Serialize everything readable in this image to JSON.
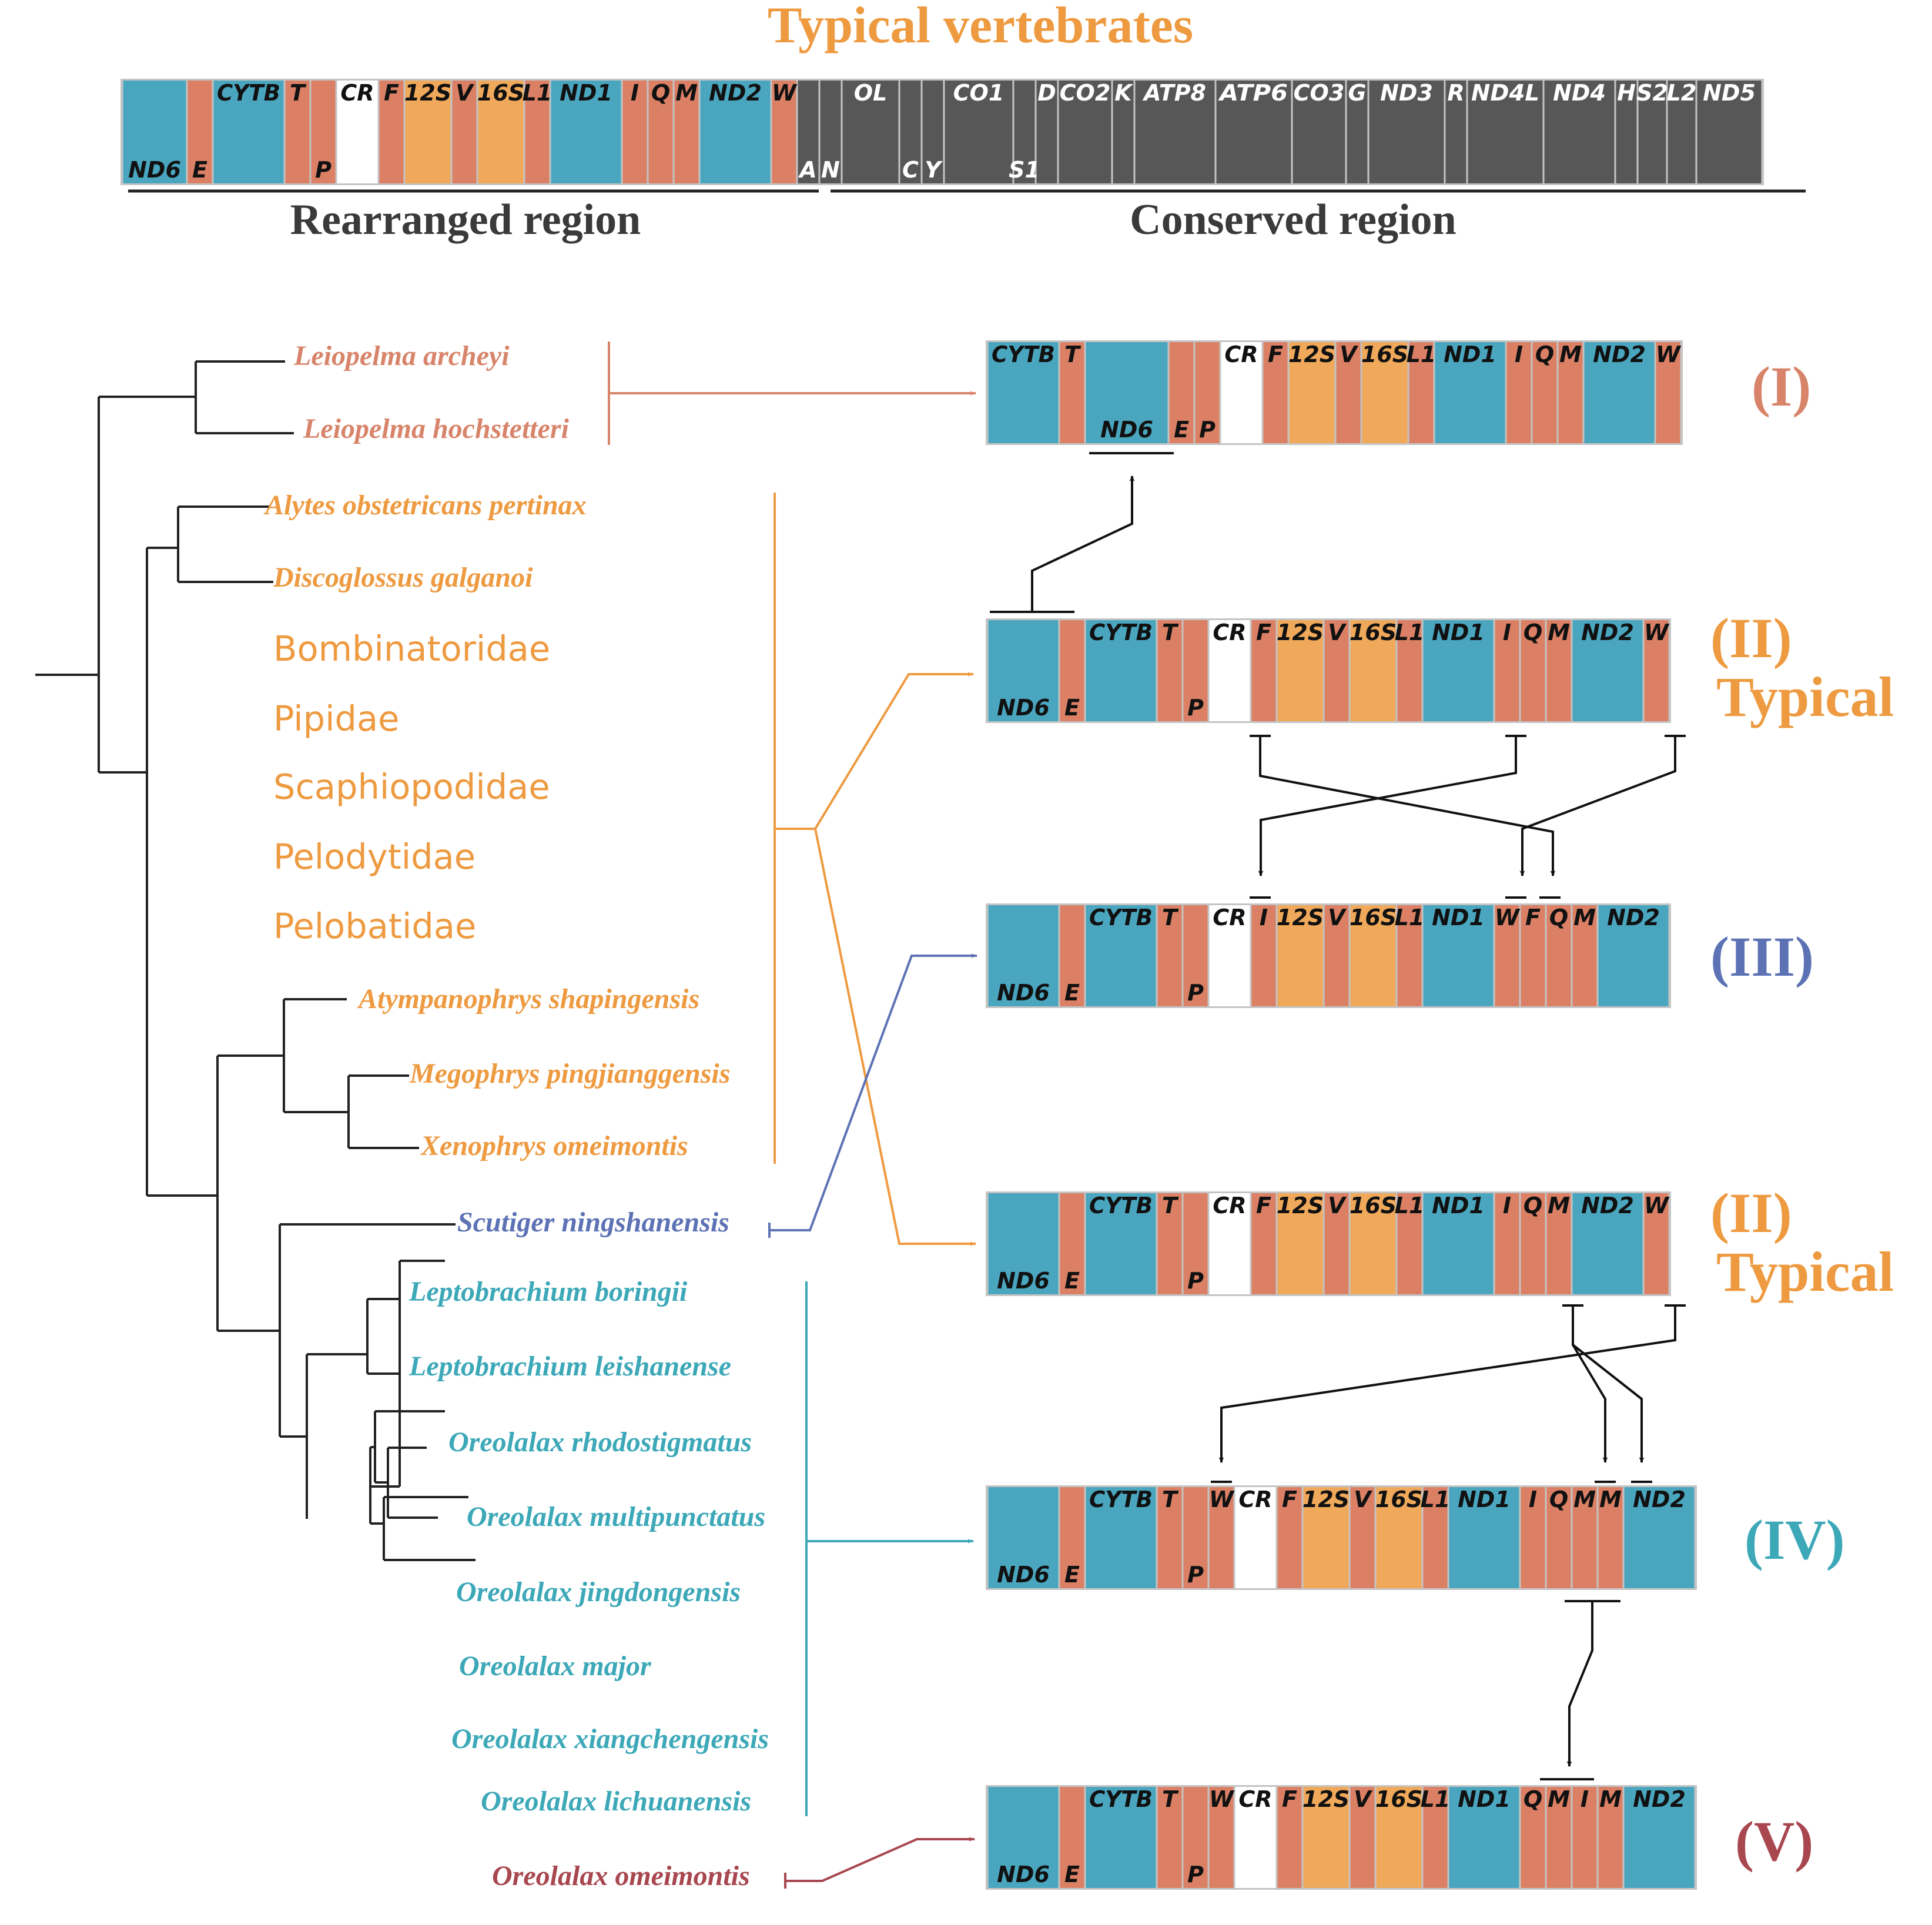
{
  "header": {
    "title": "Typical vertebrates",
    "rearranged_label": "Rearranged region",
    "conserved_label": "Conserved region"
  },
  "colors": {
    "protein_coding": "#4aa6bf",
    "trna": "#db8065",
    "rrna": "#f0a95a",
    "control_region": "#ffffff",
    "conserved_dark": "#575757",
    "border": "#c4c4c4",
    "group_leiopelma": "#d8846a",
    "group_typical": "#ee9a40",
    "group_scutiger": "#5c72b5",
    "group_oreolalax": "#3ca8b8",
    "group_omeimontis": "#a8474f",
    "tree": "#222222"
  },
  "typical_genome": {
    "genes": [
      {
        "label": "ND6",
        "type": "pcg",
        "pos": "bottom"
      },
      {
        "label": "E",
        "type": "trna",
        "pos": "bottom"
      },
      {
        "label": "CYTB",
        "type": "pcg",
        "pos": "top"
      },
      {
        "label": "T",
        "type": "trna",
        "pos": "top"
      },
      {
        "label": "P",
        "type": "trna",
        "pos": "bottom"
      },
      {
        "label": "CR",
        "type": "cr",
        "pos": "top"
      },
      {
        "label": "F",
        "type": "trna",
        "pos": "top"
      },
      {
        "label": "12S",
        "type": "rrna",
        "pos": "top"
      },
      {
        "label": "V",
        "type": "trna",
        "pos": "top"
      },
      {
        "label": "16S",
        "type": "rrna",
        "pos": "top"
      },
      {
        "label": "L1",
        "type": "trna",
        "pos": "top"
      },
      {
        "label": "ND1",
        "type": "pcg",
        "pos": "top"
      },
      {
        "label": "I",
        "type": "trna",
        "pos": "top"
      },
      {
        "label": "Q",
        "type": "trna",
        "pos": "top"
      },
      {
        "label": "M",
        "type": "trna",
        "pos": "top"
      },
      {
        "label": "ND2",
        "type": "pcg",
        "pos": "top"
      },
      {
        "label": "W",
        "type": "trna",
        "pos": "top"
      },
      {
        "label": "A",
        "type": "dark",
        "pos": "bottom"
      },
      {
        "label": "N",
        "type": "dark",
        "pos": "bottom"
      },
      {
        "label": "OL",
        "type": "dark",
        "pos": "top"
      },
      {
        "label": "C",
        "type": "dark",
        "pos": "bottom"
      },
      {
        "label": "Y",
        "type": "dark",
        "pos": "bottom"
      },
      {
        "label": "CO1",
        "type": "dark",
        "pos": "top"
      },
      {
        "label": "S1",
        "type": "dark",
        "pos": "bottom"
      },
      {
        "label": "D",
        "type": "dark",
        "pos": "top"
      },
      {
        "label": "CO2",
        "type": "dark",
        "pos": "top"
      },
      {
        "label": "K",
        "type": "dark",
        "pos": "top"
      },
      {
        "label": "ATP8",
        "type": "dark",
        "pos": "top"
      },
      {
        "label": "ATP6",
        "type": "dark",
        "pos": "top"
      },
      {
        "label": "CO3",
        "type": "dark",
        "pos": "top"
      },
      {
        "label": "G",
        "type": "dark",
        "pos": "top"
      },
      {
        "label": "ND3",
        "type": "dark",
        "pos": "top"
      },
      {
        "label": "R",
        "type": "dark",
        "pos": "top"
      },
      {
        "label": "ND4L",
        "type": "dark",
        "pos": "top"
      },
      {
        "label": "ND4",
        "type": "dark",
        "pos": "top"
      },
      {
        "label": "H",
        "type": "dark",
        "pos": "top"
      },
      {
        "label": "S2",
        "type": "dark",
        "pos": "top"
      },
      {
        "label": "L2",
        "type": "dark",
        "pos": "top"
      },
      {
        "label": "ND5",
        "type": "dark",
        "pos": "top"
      }
    ]
  },
  "tree": {
    "species": [
      {
        "name": "Leiopelma archeyi",
        "group": "leiopelma"
      },
      {
        "name": "Leiopelma hochstetteri",
        "group": "leiopelma"
      },
      {
        "name": "Alytes obstetricans pertinax",
        "group": "typical"
      },
      {
        "name": "Discoglossus galganoi",
        "group": "typical"
      },
      {
        "name": "Atympanophrys shapingensis",
        "group": "typical"
      },
      {
        "name": "Megophrys pingjianggensis",
        "group": "typical"
      },
      {
        "name": "Xenophrys omeimontis",
        "group": "typical"
      },
      {
        "name": "Scutiger ningshanensis",
        "group": "scutiger"
      },
      {
        "name": "Leptobrachium boringii",
        "group": "oreolalax"
      },
      {
        "name": "Leptobrachium leishanense",
        "group": "oreolalax"
      },
      {
        "name": "Oreolalax rhodostigmatus",
        "group": "oreolalax"
      },
      {
        "name": "Oreolalax multipunctatus",
        "group": "oreolalax"
      },
      {
        "name": "Oreolalax jingdongensis",
        "group": "oreolalax"
      },
      {
        "name": "Oreolalax major",
        "group": "oreolalax"
      },
      {
        "name": "Oreolalax xiangchengensis",
        "group": "oreolalax"
      },
      {
        "name": "Oreolalax lichuanensis",
        "group": "oreolalax"
      },
      {
        "name": "Oreolalax omeimontis",
        "group": "omeimontis"
      }
    ],
    "families": [
      "Bombinatoridae",
      "Pipidae",
      "Scaphiopodidae",
      "Pelodytidae",
      "Pelobatidae"
    ]
  },
  "arrangements": [
    {
      "id": "I",
      "label": "(I)",
      "sublabel": "",
      "group": "leiopelma",
      "genes": [
        [
          "CYTB",
          "pcg",
          "top"
        ],
        [
          "T",
          "trna",
          "top"
        ],
        [
          "ND6",
          "pcg",
          "bottom"
        ],
        [
          "E",
          "trna",
          "bottom"
        ],
        [
          "P",
          "trna",
          "bottom"
        ],
        [
          "CR",
          "cr",
          "top"
        ],
        [
          "F",
          "trna",
          "top"
        ],
        [
          "12S",
          "rrna",
          "top"
        ],
        [
          "V",
          "trna",
          "top"
        ],
        [
          "16S",
          "rrna",
          "top"
        ],
        [
          "L1",
          "trna",
          "top"
        ],
        [
          "ND1",
          "pcg",
          "top"
        ],
        [
          "I",
          "trna",
          "top"
        ],
        [
          "Q",
          "trna",
          "top"
        ],
        [
          "M",
          "trna",
          "top"
        ],
        [
          "ND2",
          "pcg",
          "top"
        ],
        [
          "W",
          "trna",
          "top"
        ]
      ]
    },
    {
      "id": "II-a",
      "label": "(II)",
      "sublabel": "Typical",
      "group": "typical",
      "genes": [
        [
          "ND6",
          "pcg",
          "bottom"
        ],
        [
          "E",
          "trna",
          "bottom"
        ],
        [
          "CYTB",
          "pcg",
          "top"
        ],
        [
          "T",
          "trna",
          "top"
        ],
        [
          "P",
          "trna",
          "bottom"
        ],
        [
          "CR",
          "cr",
          "top"
        ],
        [
          "F",
          "trna",
          "top"
        ],
        [
          "12S",
          "rrna",
          "top"
        ],
        [
          "V",
          "trna",
          "top"
        ],
        [
          "16S",
          "rrna",
          "top"
        ],
        [
          "L1",
          "trna",
          "top"
        ],
        [
          "ND1",
          "pcg",
          "top"
        ],
        [
          "I",
          "trna",
          "top"
        ],
        [
          "Q",
          "trna",
          "top"
        ],
        [
          "M",
          "trna",
          "top"
        ],
        [
          "ND2",
          "pcg",
          "top"
        ],
        [
          "W",
          "trna",
          "top"
        ]
      ]
    },
    {
      "id": "III",
      "label": "(III)",
      "sublabel": "",
      "group": "scutiger",
      "genes": [
        [
          "ND6",
          "pcg",
          "bottom"
        ],
        [
          "E",
          "trna",
          "bottom"
        ],
        [
          "CYTB",
          "pcg",
          "top"
        ],
        [
          "T",
          "trna",
          "top"
        ],
        [
          "P",
          "trna",
          "bottom"
        ],
        [
          "CR",
          "cr",
          "top"
        ],
        [
          "I",
          "trna",
          "top"
        ],
        [
          "12S",
          "rrna",
          "top"
        ],
        [
          "V",
          "trna",
          "top"
        ],
        [
          "16S",
          "rrna",
          "top"
        ],
        [
          "L1",
          "trna",
          "top"
        ],
        [
          "ND1",
          "pcg",
          "top"
        ],
        [
          "W",
          "trna",
          "top"
        ],
        [
          "F",
          "trna",
          "top"
        ],
        [
          "Q",
          "trna",
          "top"
        ],
        [
          "M",
          "trna",
          "top"
        ],
        [
          "ND2",
          "pcg",
          "top"
        ]
      ]
    },
    {
      "id": "II-b",
      "label": "(II)",
      "sublabel": "Typical",
      "group": "typical",
      "genes": [
        [
          "ND6",
          "pcg",
          "bottom"
        ],
        [
          "E",
          "trna",
          "bottom"
        ],
        [
          "CYTB",
          "pcg",
          "top"
        ],
        [
          "T",
          "trna",
          "top"
        ],
        [
          "P",
          "trna",
          "bottom"
        ],
        [
          "CR",
          "cr",
          "top"
        ],
        [
          "F",
          "trna",
          "top"
        ],
        [
          "12S",
          "rrna",
          "top"
        ],
        [
          "V",
          "trna",
          "top"
        ],
        [
          "16S",
          "rrna",
          "top"
        ],
        [
          "L1",
          "trna",
          "top"
        ],
        [
          "ND1",
          "pcg",
          "top"
        ],
        [
          "I",
          "trna",
          "top"
        ],
        [
          "Q",
          "trna",
          "top"
        ],
        [
          "M",
          "trna",
          "top"
        ],
        [
          "ND2",
          "pcg",
          "top"
        ],
        [
          "W",
          "trna",
          "top"
        ]
      ]
    },
    {
      "id": "IV",
      "label": "(IV)",
      "sublabel": "",
      "group": "oreolalax",
      "genes": [
        [
          "ND6",
          "pcg",
          "bottom"
        ],
        [
          "E",
          "trna",
          "bottom"
        ],
        [
          "CYTB",
          "pcg",
          "top"
        ],
        [
          "T",
          "trna",
          "top"
        ],
        [
          "P",
          "trna",
          "bottom"
        ],
        [
          "W",
          "trna",
          "top"
        ],
        [
          "CR",
          "cr",
          "top"
        ],
        [
          "F",
          "trna",
          "top"
        ],
        [
          "12S",
          "rrna",
          "top"
        ],
        [
          "V",
          "trna",
          "top"
        ],
        [
          "16S",
          "rrna",
          "top"
        ],
        [
          "L1",
          "trna",
          "top"
        ],
        [
          "ND1",
          "pcg",
          "top"
        ],
        [
          "I",
          "trna",
          "top"
        ],
        [
          "Q",
          "trna",
          "top"
        ],
        [
          "M",
          "trna",
          "top"
        ],
        [
          "M",
          "trna",
          "top"
        ],
        [
          "ND2",
          "pcg",
          "top"
        ]
      ]
    },
    {
      "id": "V",
      "label": "(V)",
      "sublabel": "",
      "group": "omeimontis",
      "genes": [
        [
          "ND6",
          "pcg",
          "bottom"
        ],
        [
          "E",
          "trna",
          "bottom"
        ],
        [
          "CYTB",
          "pcg",
          "top"
        ],
        [
          "T",
          "trna",
          "top"
        ],
        [
          "P",
          "trna",
          "bottom"
        ],
        [
          "W",
          "trna",
          "top"
        ],
        [
          "CR",
          "cr",
          "top"
        ],
        [
          "F",
          "trna",
          "top"
        ],
        [
          "12S",
          "rrna",
          "top"
        ],
        [
          "V",
          "trna",
          "top"
        ],
        [
          "16S",
          "rrna",
          "top"
        ],
        [
          "L1",
          "trna",
          "top"
        ],
        [
          "ND1",
          "pcg",
          "top"
        ],
        [
          "Q",
          "trna",
          "top"
        ],
        [
          "M",
          "trna",
          "top"
        ],
        [
          "I",
          "trna",
          "top"
        ],
        [
          "M",
          "trna",
          "top"
        ],
        [
          "ND2",
          "pcg",
          "top"
        ]
      ]
    }
  ]
}
